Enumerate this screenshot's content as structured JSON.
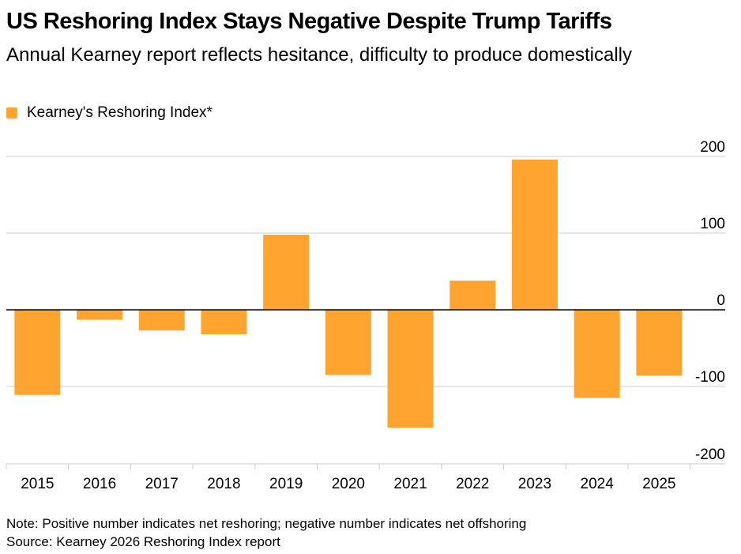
{
  "title": "US Reshoring Index Stays Negative Despite Trump Tariffs",
  "subtitle": "Annual Kearney report reflects hesitance, difficulty to produce domestically",
  "note": "Note: Positive number indicates net reshoring; negative number indicates net offshoring",
  "source": "Source: Kearney 2026 Reshoring Index report",
  "colors": {
    "bar": "#FFA42F",
    "grid": "#CCCCCC",
    "axis": "#000000",
    "text": "#000000"
  },
  "chart_data": {
    "type": "bar",
    "categories": [
      "2015",
      "2016",
      "2017",
      "2018",
      "2019",
      "2020",
      "2021",
      "2022",
      "2023",
      "2024",
      "2025"
    ],
    "series": [
      {
        "name": "Kearney's Reshoring Index*",
        "values": [
          -111,
          -13,
          -27,
          -32,
          98,
          -85,
          -154,
          38,
          196,
          -115,
          -86
        ]
      }
    ],
    "yticks": [
      200,
      100,
      0,
      -100,
      -200
    ],
    "ytick_labels": [
      "200",
      "100",
      "0",
      "-100",
      "-200"
    ],
    "ylim": [
      -200,
      200
    ],
    "xlabel": "",
    "ylabel": "",
    "grid": true,
    "y_axis_position": "right",
    "legend_position": "top-left"
  }
}
